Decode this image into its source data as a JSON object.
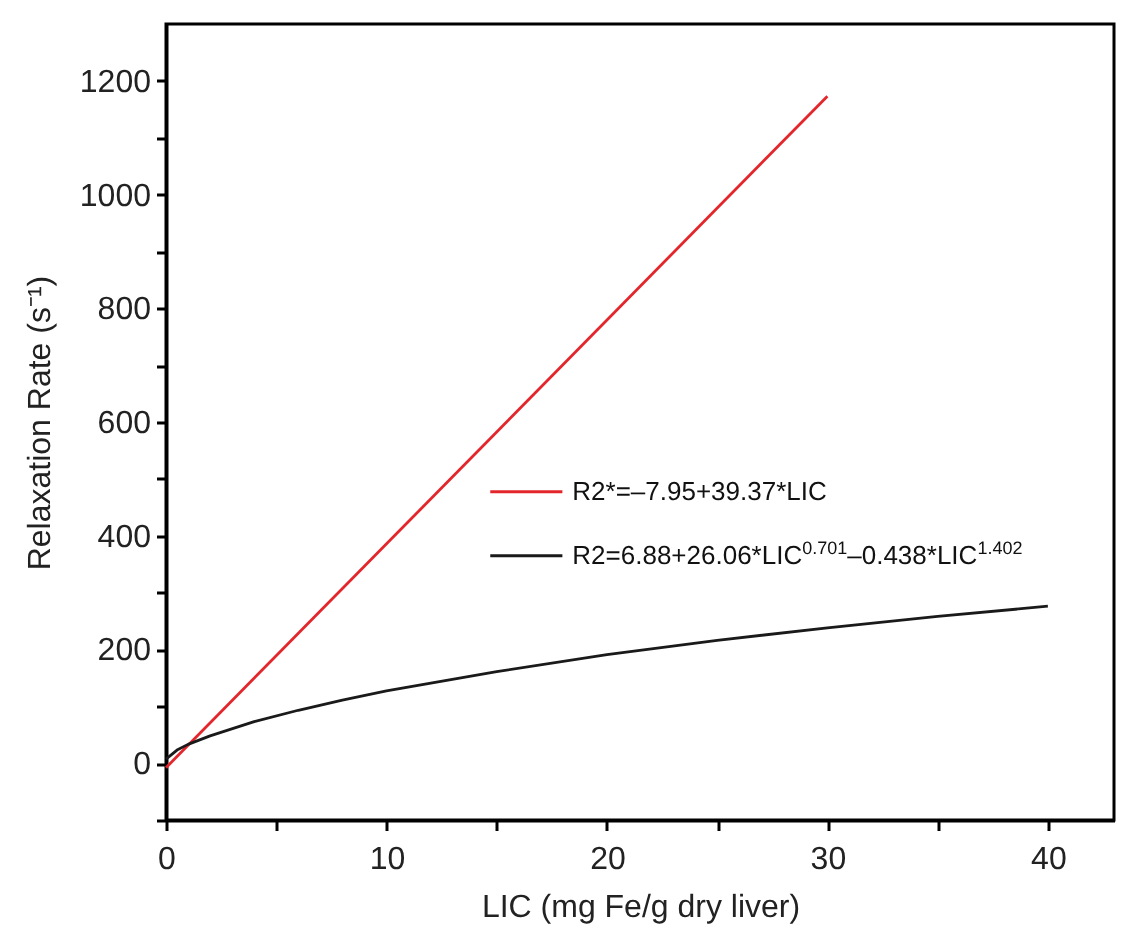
{
  "chart_data": {
    "type": "line",
    "xlabel": "LIC (mg Fe/g dry liver)",
    "ylabel": "Relaxation Rate (s⁻¹)",
    "xlim": [
      0,
      43
    ],
    "xticks": [
      0,
      {
        "value": 5,
        "label": null
      },
      10,
      {
        "value": 15,
        "label": null
      },
      20,
      {
        "value": 25,
        "label": null
      },
      30,
      {
        "value": 35,
        "label": null
      },
      40
    ],
    "ylim": [
      -100,
      1300
    ],
    "yticks": [
      {
        "value": -100,
        "label": null
      },
      0,
      {
        "value": 100,
        "label": null
      },
      200,
      {
        "value": 300,
        "label": null
      },
      400,
      {
        "value": 500,
        "label": null
      },
      600,
      {
        "value": 700,
        "label": null
      },
      800,
      {
        "value": 900,
        "label": null
      },
      1000,
      {
        "value": 1100,
        "label": null
      },
      1200
    ],
    "legend": "right",
    "marker": "none",
    "line_style": "solid",
    "series": [
      {
        "name": "R2*=–7.95+39.37*LIC",
        "color": "#e3262b",
        "x": [
          0,
          30
        ],
        "values": [
          -8,
          1173
        ]
      },
      {
        "name": "R2=6.88+26.06*LIC$^{0.701}$–0.438*LIC$^{1.402}$",
        "color": "#1a1a1a",
        "x": [
          0,
          0.5,
          1,
          2,
          4,
          6,
          8,
          10,
          15,
          20,
          25,
          30,
          35,
          40
        ],
        "values": [
          7,
          23,
          33,
          48,
          73,
          93,
          111,
          127,
          161,
          191,
          216,
          238,
          258,
          276
        ]
      }
    ]
  }
}
